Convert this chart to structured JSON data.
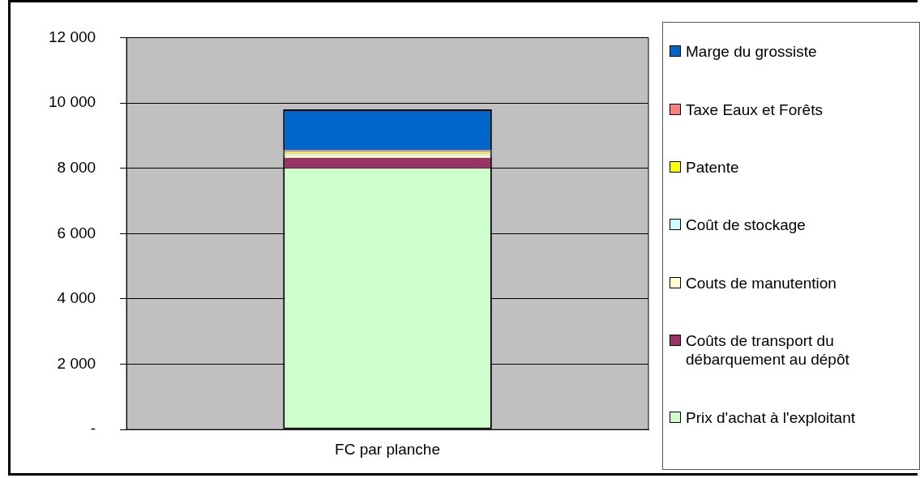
{
  "chart_data": {
    "type": "bar",
    "stacked": true,
    "categories": [
      "FC par planche"
    ],
    "series": [
      {
        "name": "Prix d'achat à l'exploitant",
        "color": "#ccffcc",
        "values": [
          8000
        ]
      },
      {
        "name": "Coûts de transport du débarquement au dépôt",
        "color": "#993366",
        "values": [
          320
        ]
      },
      {
        "name": "Couts de manutention",
        "color": "#ffffcc",
        "values": [
          80
        ]
      },
      {
        "name": "Coût de stockage",
        "color": "#ccffff",
        "values": [
          50
        ]
      },
      {
        "name": "Patente",
        "color": "#ffff00",
        "values": [
          50
        ]
      },
      {
        "name": "Taxe Eaux et Forêts",
        "color": "#ff8080",
        "values": [
          50
        ]
      },
      {
        "name": "Marge du grossiste",
        "color": "#0066cc",
        "values": [
          1250
        ]
      }
    ],
    "ylim": [
      0,
      12000
    ],
    "yticks": [
      {
        "value": 0,
        "label": "-"
      },
      {
        "value": 2000,
        "label": "2 000"
      },
      {
        "value": 4000,
        "label": "4 000"
      },
      {
        "value": 6000,
        "label": "6 000"
      },
      {
        "value": 8000,
        "label": "8 000"
      },
      {
        "value": 10000,
        "label": "10 000"
      },
      {
        "value": 12000,
        "label": "12 000"
      }
    ],
    "grid": "y",
    "legend": "right"
  }
}
